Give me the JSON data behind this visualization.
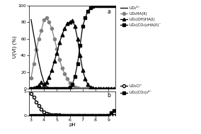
{
  "pH": [
    3.0,
    3.2,
    3.4,
    3.6,
    3.8,
    4.0,
    4.2,
    4.4,
    4.6,
    4.8,
    5.0,
    5.2,
    5.4,
    5.6,
    5.8,
    6.0,
    6.2,
    6.4,
    6.6,
    6.8,
    7.0,
    7.2,
    7.4,
    7.6,
    7.8,
    8.0,
    8.2,
    8.4,
    8.6,
    8.8,
    9.0,
    9.2,
    9.4
  ],
  "UO2_2plus": [
    83,
    65,
    48,
    32,
    18,
    8,
    3,
    1,
    0.5,
    0.2,
    0.1,
    0.05,
    0.02,
    0.01,
    0,
    0,
    0,
    0,
    0,
    0,
    0,
    0,
    0,
    0,
    0,
    0,
    0,
    0,
    0,
    0,
    0,
    0,
    0
  ],
  "UO2HA_II": [
    13,
    30,
    47,
    60,
    70,
    83,
    85,
    80,
    72,
    60,
    48,
    35,
    25,
    18,
    12,
    7,
    4,
    2,
    1,
    0.5,
    0.2,
    0.1,
    0,
    0,
    0,
    0,
    0,
    0,
    0,
    0,
    0,
    0,
    0
  ],
  "UO2OH_HA_I": [
    0,
    1,
    2,
    4,
    8,
    5,
    8,
    14,
    22,
    33,
    43,
    55,
    65,
    72,
    78,
    80,
    82,
    75,
    60,
    40,
    22,
    12,
    5,
    2,
    1,
    0.5,
    0,
    0,
    0,
    0,
    0,
    0,
    0
  ],
  "UO2CO3_2_HA_II": [
    0,
    0,
    0,
    0,
    0,
    0,
    0,
    0,
    0,
    0,
    0,
    0,
    0,
    0,
    0,
    2,
    5,
    15,
    30,
    52,
    75,
    85,
    93,
    97,
    99,
    99.5,
    99.8,
    100,
    100,
    100,
    100,
    100,
    100
  ],
  "UO2Cl_plus": [
    4.5,
    3.8,
    2.8,
    2.0,
    1.3,
    0.7,
    0.4,
    0.2,
    0.1,
    0.05,
    0.02,
    0.01,
    0,
    0,
    0,
    0,
    0,
    0,
    0,
    0,
    0,
    0,
    0,
    0,
    0,
    0,
    0,
    0,
    0,
    0,
    0,
    0,
    0
  ],
  "UO2CO3_3_4minus": [
    0,
    0,
    0,
    0,
    0,
    0,
    0,
    0,
    0,
    0,
    0,
    0,
    0,
    0,
    0,
    0,
    0,
    0,
    0,
    0,
    0,
    0,
    0,
    0,
    0,
    0,
    0,
    0,
    0,
    0,
    0,
    0.5,
    1.0
  ],
  "bg_color": "#ffffff",
  "label_a": "a",
  "label_b": "b",
  "legend_a": [
    "UO₂²⁺",
    "UO₂HA(II)",
    "UO₂(OH)HA(I)",
    "UO₂(CO₃)₂HA(II)⁻"
  ],
  "legend_b": [
    "UO₂Cl⁺",
    "UO₂(CO₃)₃⁴⁻"
  ],
  "ylabel_a": "U(VI) (%)",
  "xlabel": "pH",
  "ylim_a": [
    0,
    100
  ],
  "ylim_b": [
    0,
    5
  ],
  "xlim": [
    2.85,
    9.55
  ],
  "yticks_a": [
    0,
    20,
    40,
    60,
    80,
    100
  ],
  "yticks_b": [
    0,
    5
  ],
  "xticks": [
    3,
    4,
    5,
    6,
    7,
    8,
    9
  ]
}
